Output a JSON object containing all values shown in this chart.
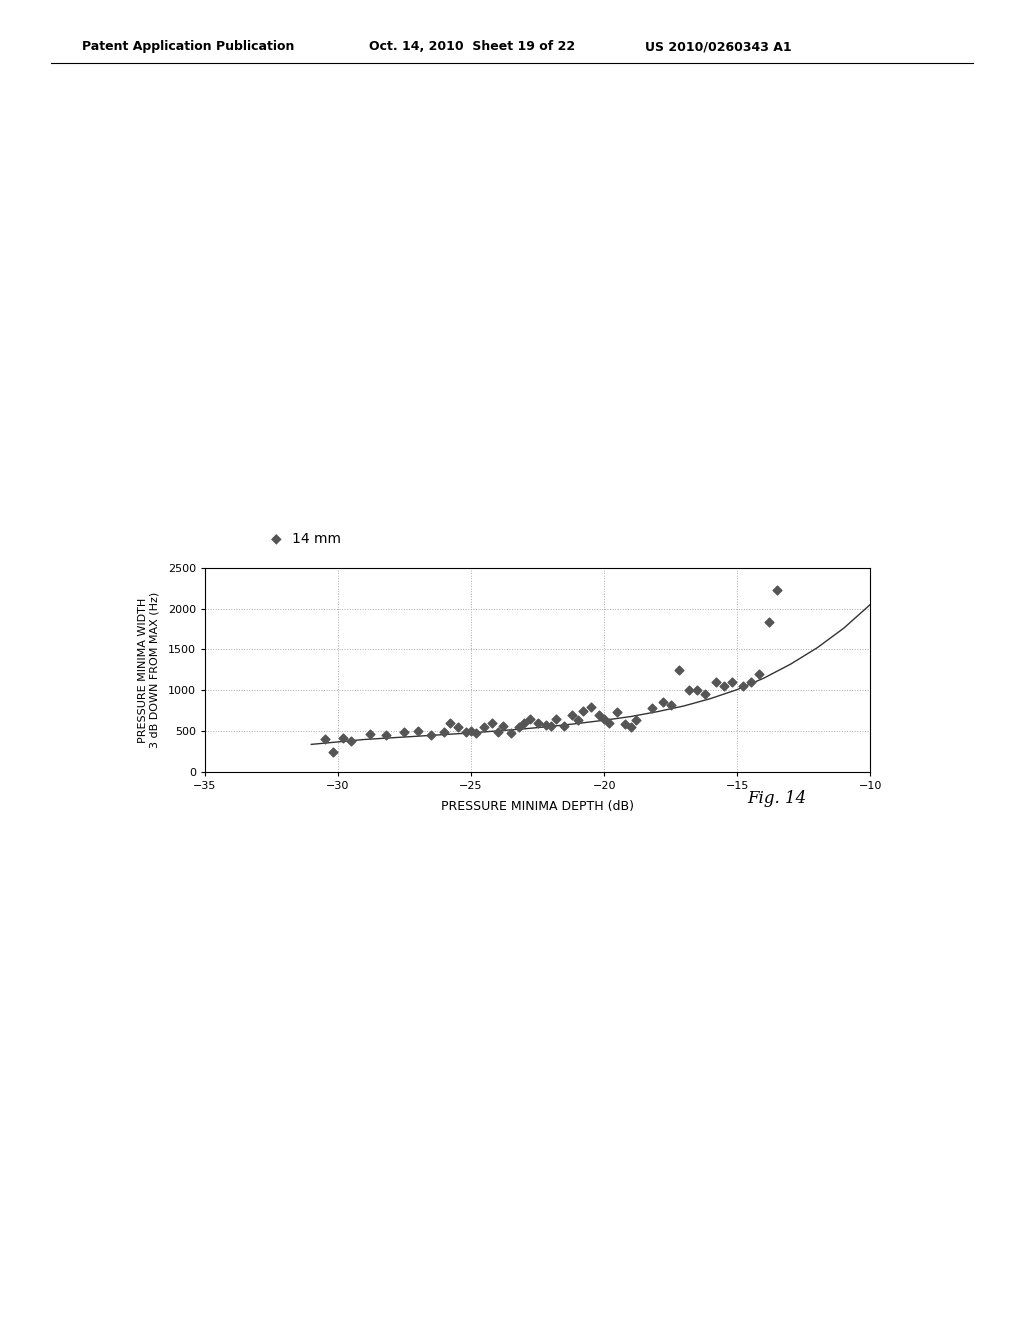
{
  "scatter_x": [
    -30.5,
    -30.2,
    -29.8,
    -29.5,
    -28.8,
    -28.2,
    -27.5,
    -27.0,
    -26.5,
    -26.0,
    -25.8,
    -25.5,
    -25.2,
    -25.0,
    -24.8,
    -24.5,
    -24.2,
    -24.0,
    -23.8,
    -23.5,
    -23.2,
    -23.0,
    -22.8,
    -22.5,
    -22.2,
    -22.0,
    -21.8,
    -21.5,
    -21.2,
    -21.0,
    -20.8,
    -20.5,
    -20.2,
    -20.0,
    -19.8,
    -19.5,
    -19.2,
    -19.0,
    -18.8,
    -18.2,
    -17.8,
    -17.5,
    -17.2,
    -16.8,
    -16.5,
    -16.2,
    -15.8,
    -15.5,
    -15.2,
    -14.8,
    -14.5,
    -14.2,
    -13.8,
    -13.5
  ],
  "scatter_y": [
    400,
    250,
    420,
    380,
    470,
    450,
    490,
    500,
    460,
    490,
    600,
    550,
    490,
    500,
    480,
    550,
    600,
    490,
    560,
    480,
    550,
    600,
    650,
    600,
    580,
    560,
    650,
    560,
    700,
    640,
    750,
    800,
    700,
    650,
    600,
    730,
    590,
    550,
    640,
    780,
    860,
    820,
    1250,
    1000,
    1000,
    950,
    1100,
    1050,
    1100,
    1050,
    1100,
    1200,
    1830,
    2230
  ],
  "curve_x": [
    -31,
    -30,
    -29,
    -28,
    -27,
    -26,
    -25,
    -24,
    -23,
    -22,
    -21,
    -20,
    -19,
    -18,
    -17,
    -16,
    -15,
    -14,
    -13,
    -12,
    -11,
    -10
  ],
  "curve_y": [
    340,
    370,
    400,
    420,
    440,
    460,
    480,
    505,
    530,
    560,
    595,
    635,
    680,
    740,
    810,
    900,
    1010,
    1150,
    1320,
    1520,
    1760,
    2050
  ],
  "xlabel": "PRESSURE MINIMA DEPTH (dB)",
  "ylabel": "PRESSURE MINIMA WIDTH\n3 dB DOWN FROM MAX (Hz)",
  "legend_label": "14 mm",
  "xlim": [
    -35,
    -10
  ],
  "ylim": [
    0,
    2500
  ],
  "xticks": [
    -35,
    -30,
    -25,
    -20,
    -15,
    -10
  ],
  "yticks": [
    0,
    500,
    1000,
    1500,
    2000,
    2500
  ],
  "marker_color": "#555555",
  "line_color": "#333333",
  "grid_color": "#aaaaaa",
  "background_color": "#ffffff",
  "patent_left": "Patent Application Publication",
  "patent_mid": "Oct. 14, 2010  Sheet 19 of 22",
  "patent_right": "US 2010/0260343 A1",
  "fig_label": "Fig. 14"
}
